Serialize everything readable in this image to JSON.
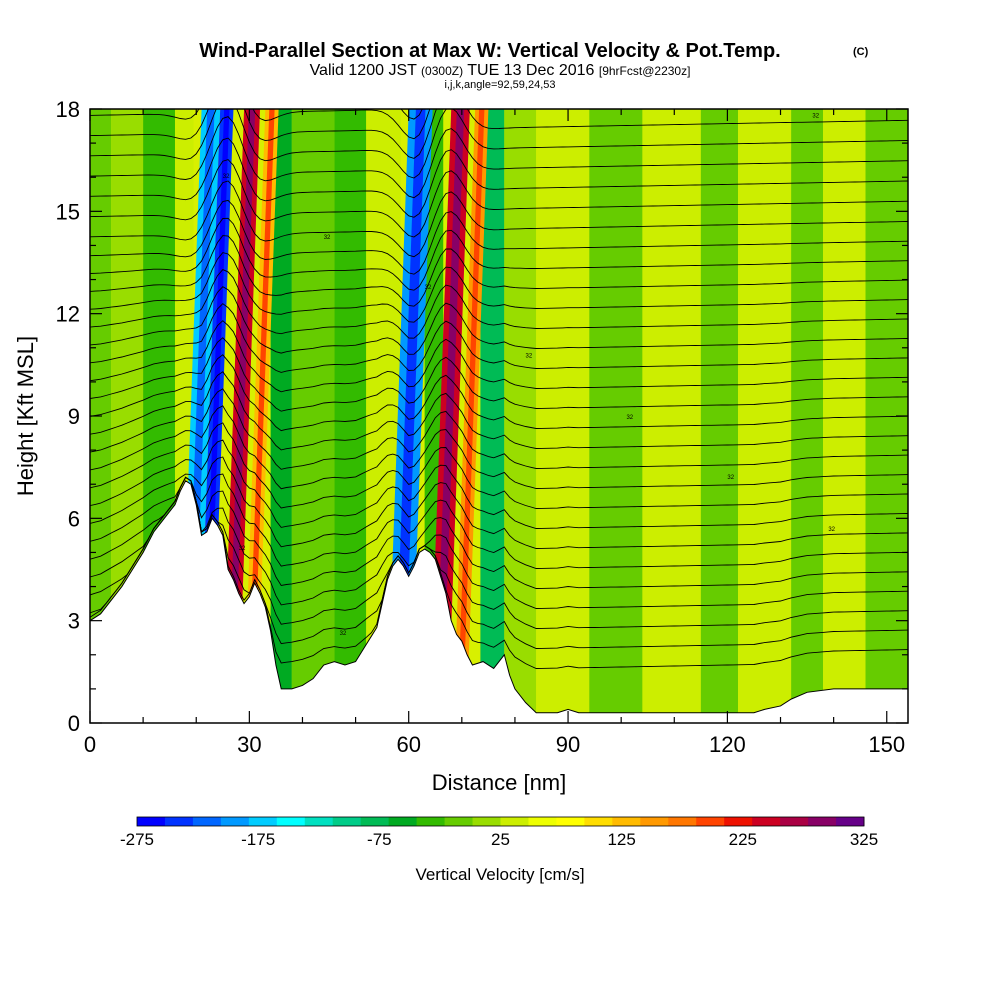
{
  "chart_data": {
    "type": "heatmap",
    "title": "Wind-Parallel Section at Max W: Vertical Velocity & Pot.Temp.",
    "title_mark": "(C)",
    "subtitle_prefix": "Valid 1200 JST",
    "subtitle_utc": "(0300Z)",
    "subtitle_date": "TUE 13 Dec 2016",
    "subtitle_fcst": "[9hrFcst@2230z]",
    "indices": "i,j,k,angle=92,59,24,53",
    "xlabel": "Distance [nm]",
    "ylabel": "Height [Kft MSL]",
    "xlim": [
      0,
      154
    ],
    "ylim": [
      0,
      18
    ],
    "x_ticks": [
      "0",
      "30",
      "60",
      "90",
      "120",
      "150"
    ],
    "y_ticks": [
      "0",
      "3",
      "6",
      "9",
      "12",
      "15",
      "18"
    ],
    "colorbar": {
      "title": "Vertical Velocity [cm/s]",
      "range": [
        -275,
        325
      ],
      "labels": [
        "-275",
        "-175",
        "-75",
        "25",
        "125",
        "225",
        "325"
      ],
      "colors": [
        "#0000ff",
        "#0033ff",
        "#0066ff",
        "#0099ff",
        "#00ccff",
        "#00ffff",
        "#00e0c0",
        "#00cc88",
        "#00bb55",
        "#00aa22",
        "#33bb00",
        "#66cc00",
        "#99dd00",
        "#ccee00",
        "#eeff00",
        "#ffff00",
        "#ffdd00",
        "#ffbb00",
        "#ff9900",
        "#ff7700",
        "#ff4400",
        "#ee1100",
        "#cc0022",
        "#aa0044",
        "#880066",
        "#660088"
      ]
    },
    "velocity_bands": [
      {
        "x_start": 19.5,
        "x_end": 23.0,
        "w": -180
      },
      {
        "x_start": 23.0,
        "x_end": 25.5,
        "w": -240
      },
      {
        "x_start": 27.5,
        "x_end": 30.5,
        "w": 240
      },
      {
        "x_start": 31.5,
        "x_end": 34.0,
        "w": 140
      },
      {
        "x_start": 58.5,
        "x_end": 63.0,
        "w": -200
      },
      {
        "x_start": 66.5,
        "x_end": 70.0,
        "w": 240
      },
      {
        "x_start": 71.0,
        "x_end": 73.5,
        "w": 150
      }
    ],
    "terrain_height_kft": [
      [
        0,
        3.0
      ],
      [
        2,
        3.2
      ],
      [
        4,
        3.6
      ],
      [
        6,
        4.0
      ],
      [
        8,
        4.5
      ],
      [
        10,
        5.0
      ],
      [
        12,
        5.6
      ],
      [
        14,
        6.0
      ],
      [
        16,
        6.4
      ],
      [
        17,
        6.8
      ],
      [
        18,
        7.1
      ],
      [
        19,
        7.0
      ],
      [
        20,
        6.4
      ],
      [
        21,
        5.5
      ],
      [
        22,
        5.6
      ],
      [
        23,
        6.0
      ],
      [
        24,
        5.8
      ],
      [
        25,
        5.5
      ],
      [
        26,
        4.5
      ],
      [
        27,
        4.2
      ],
      [
        28,
        3.8
      ],
      [
        29,
        3.5
      ],
      [
        30,
        3.7
      ],
      [
        31,
        4.1
      ],
      [
        32,
        3.8
      ],
      [
        33,
        3.4
      ],
      [
        34,
        2.7
      ],
      [
        35,
        1.7
      ],
      [
        36,
        1.0
      ],
      [
        38,
        1.0
      ],
      [
        40,
        1.1
      ],
      [
        42,
        1.3
      ],
      [
        44,
        1.7
      ],
      [
        46,
        1.8
      ],
      [
        48,
        1.7
      ],
      [
        50,
        1.8
      ],
      [
        52,
        2.3
      ],
      [
        54,
        2.8
      ],
      [
        55,
        3.5
      ],
      [
        56,
        4.2
      ],
      [
        57,
        4.6
      ],
      [
        58,
        4.8
      ],
      [
        59,
        4.6
      ],
      [
        60,
        4.3
      ],
      [
        61,
        4.6
      ],
      [
        62,
        5.0
      ],
      [
        63,
        5.1
      ],
      [
        64,
        5.0
      ],
      [
        65,
        4.8
      ],
      [
        66,
        4.3
      ],
      [
        67,
        3.8
      ],
      [
        68,
        3.0
      ],
      [
        69,
        2.6
      ],
      [
        70,
        2.4
      ],
      [
        71,
        2.0
      ],
      [
        72,
        1.7
      ],
      [
        74,
        1.8
      ],
      [
        76,
        1.6
      ],
      [
        78,
        2.0
      ],
      [
        79,
        1.4
      ],
      [
        80,
        1.0
      ],
      [
        82,
        0.6
      ],
      [
        84,
        0.3
      ],
      [
        88,
        0.3
      ],
      [
        90,
        0.4
      ],
      [
        92,
        0.3
      ],
      [
        110,
        0.3
      ],
      [
        125,
        0.3
      ],
      [
        127,
        0.4
      ],
      [
        130,
        0.5
      ],
      [
        132,
        0.7
      ],
      [
        135,
        0.9
      ],
      [
        140,
        1.0
      ],
      [
        145,
        1.0
      ],
      [
        150,
        1.0
      ],
      [
        154,
        1.0
      ]
    ],
    "theta_line_count": 30,
    "contour_label_text": "32"
  }
}
